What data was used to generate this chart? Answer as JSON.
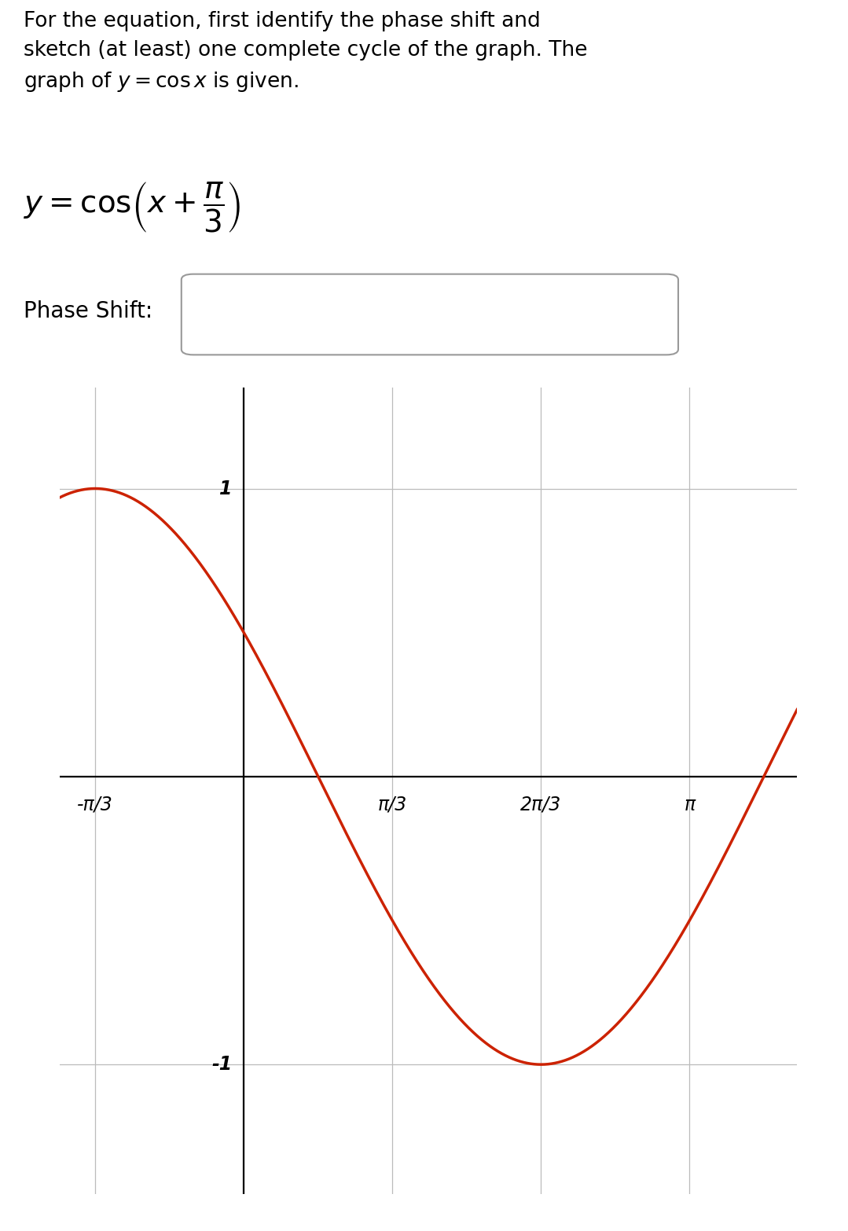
{
  "curve_color": "#cc2200",
  "curve_linewidth": 2.5,
  "x_tick_positions": [
    -1.0471975511965976,
    0.0,
    1.0471975511965976,
    2.0943951023931953,
    3.141592653589793
  ],
  "x_tick_labels": [
    "-π/3",
    "",
    "π/3",
    "2π/3",
    "π"
  ],
  "y_tick_positions": [
    -1,
    1
  ],
  "y_tick_labels": [
    "-1",
    "1"
  ],
  "x_min": -1.3,
  "x_max": 3.9,
  "y_min": -1.45,
  "y_max": 1.35,
  "background_color": "#ffffff",
  "grid_color": "#bbbbbb",
  "axis_color": "#000000",
  "title_fontsize": 19,
  "eq_fontsize": 28,
  "label_fontsize": 20,
  "tick_fontsize": 17
}
